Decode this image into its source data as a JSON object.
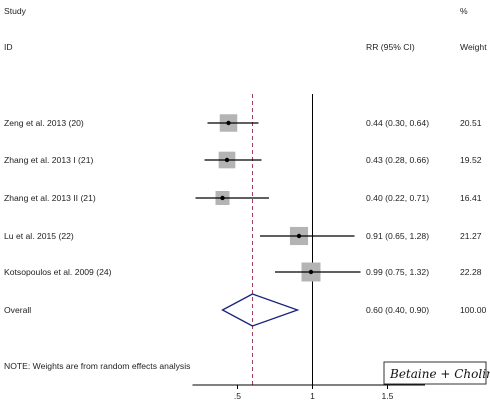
{
  "header": {
    "study_label": "Study",
    "id_label": "ID",
    "rr_label": "RR (95% CI)",
    "pct_label": "%",
    "weight_label": "Weight"
  },
  "footnote": "NOTE: Weights are from random effects analysis",
  "annotation": "Betaine + Choline",
  "chart_data": {
    "type": "forest",
    "xlim": [
      0.2,
      1.75
    ],
    "x_ticks": [
      0.5,
      1,
      1.5
    ],
    "x_tick_labels": [
      ".5",
      "1",
      "1.5"
    ],
    "null_line": 1,
    "overall_line": 0.6,
    "studies": [
      {
        "name": "Zeng et al. 2013  (20)",
        "rr": 0.44,
        "lo": 0.3,
        "hi": 0.64,
        "ci_text": "0.44 (0.30, 0.64)",
        "weight": "20.51"
      },
      {
        "name": "Zhang et al. 2013 I (21)",
        "rr": 0.43,
        "lo": 0.28,
        "hi": 0.66,
        "ci_text": "0.43 (0.28, 0.66)",
        "weight": "19.52"
      },
      {
        "name": "Zhang et al. 2013 II (21)",
        "rr": 0.4,
        "lo": 0.22,
        "hi": 0.71,
        "ci_text": "0.40 (0.22, 0.71)",
        "weight": "16.41"
      },
      {
        "name": "Lu et al. 2015  (22)",
        "rr": 0.91,
        "lo": 0.65,
        "hi": 1.28,
        "ci_text": "0.91 (0.65, 1.28)",
        "weight": "21.27"
      },
      {
        "name": "Kotsopoulos et al.  2009  (24)",
        "rr": 0.99,
        "lo": 0.75,
        "hi": 1.32,
        "ci_text": "0.99 (0.75, 1.32)",
        "weight": "22.28"
      }
    ],
    "overall": {
      "name": "Overall",
      "rr": 0.6,
      "lo": 0.4,
      "hi": 0.9,
      "ci_text": "0.60 (0.40, 0.90)",
      "weight": "100.00"
    }
  }
}
